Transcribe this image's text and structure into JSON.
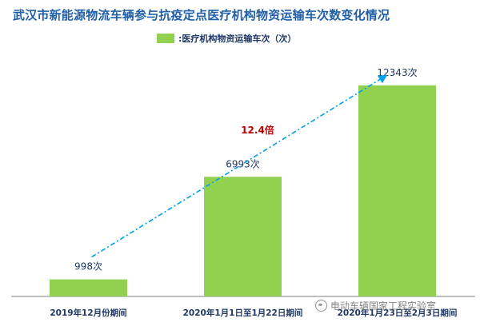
{
  "chart_data": {
    "type": "bar",
    "title": "武汉市新能源物流车辆参与抗疫定点医疗机构物资运输车次数变化情况",
    "legend": [
      {
        "label": ":医疗机构物资运输车次（次）",
        "color": "#92d050"
      }
    ],
    "categories": [
      "2019年12月份期间",
      "2020年1月1日至1月22日期间",
      "2020年1月23日至2月3日期间"
    ],
    "series": [
      {
        "values": [
          998,
          6993,
          12343
        ]
      }
    ],
    "data_labels": [
      "998次",
      "6993次",
      "12343次"
    ],
    "annotation": "12.4倍",
    "ylim": [
      0,
      13500
    ],
    "colors": {
      "bar": "#92d050",
      "title": "#1f5fa8",
      "axis_text": "#1f3864",
      "annotation": "#c00000",
      "trend_line": "#00a0e9",
      "axis": "#7f7f7f"
    }
  },
  "watermark": "电动车辆国家工程实验室"
}
